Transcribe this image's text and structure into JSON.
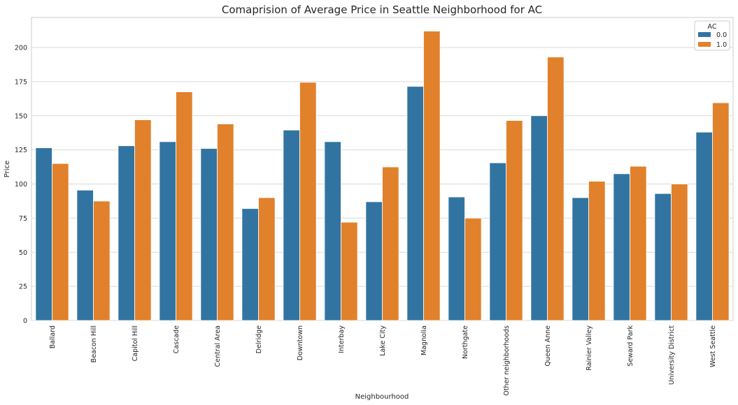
{
  "chart_data": {
    "type": "bar",
    "title": "Comaprision of Average Price in Seattle Neighborhood for AC",
    "xlabel": "Neighbourhood",
    "ylabel": "Price",
    "ylim": [
      0,
      222
    ],
    "yticks": [
      0,
      25,
      50,
      75,
      100,
      125,
      150,
      175,
      200
    ],
    "grid": "horizontal",
    "legend_title": "AC",
    "legend_position": "top-right",
    "categories": [
      "Ballard",
      "Beacon Hill",
      "Capitol Hill",
      "Cascade",
      "Central Area",
      "Delridge",
      "Downtown",
      "Interbay",
      "Lake City",
      "Magnolia",
      "Northgate",
      "Other neighborhoods",
      "Queen Anne",
      "Rainier Valley",
      "Seward Park",
      "University District",
      "West Seattle"
    ],
    "series": [
      {
        "name": "0.0",
        "color": "#3274a1",
        "values": [
          126.5,
          95.5,
          128.0,
          131.0,
          126.0,
          82.0,
          139.5,
          131.0,
          87.0,
          171.5,
          90.5,
          115.5,
          150.0,
          90.0,
          107.5,
          93.0,
          138.0
        ]
      },
      {
        "name": "1.0",
        "color": "#e1812c",
        "values": [
          115.0,
          87.5,
          147.0,
          167.5,
          144.0,
          90.0,
          174.5,
          72.0,
          112.5,
          212.0,
          75.0,
          146.5,
          193.0,
          102.0,
          113.0,
          100.0,
          159.5
        ]
      }
    ]
  }
}
